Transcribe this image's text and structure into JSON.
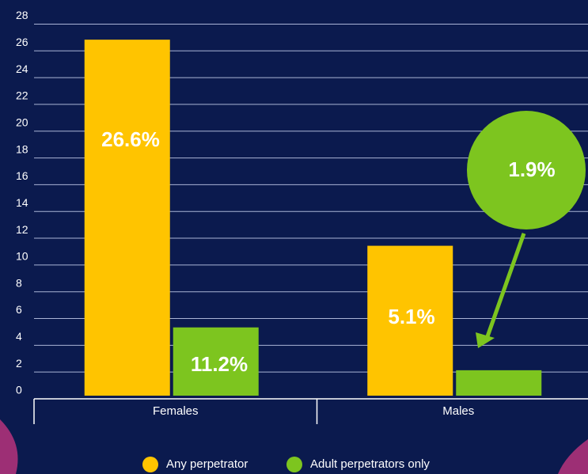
{
  "chart_data": {
    "type": "bar",
    "categories": [
      "Females",
      "Males"
    ],
    "series": [
      {
        "name": "Any perpetrator",
        "color": "#ffc400",
        "values": [
          26.6,
          11.2
        ]
      },
      {
        "name": "Adult perpetrators only",
        "color": "#7dc51f",
        "values": [
          5.1,
          1.9
        ]
      }
    ],
    "annotations": [
      "26.6%",
      "11.2%",
      "5.1%",
      "1.9%"
    ],
    "ylim": [
      0,
      28.5
    ],
    "yticks": [
      0,
      2,
      4,
      6,
      8,
      10,
      12,
      14,
      16,
      18,
      20,
      22,
      24,
      26,
      28
    ],
    "grid": true
  }
}
